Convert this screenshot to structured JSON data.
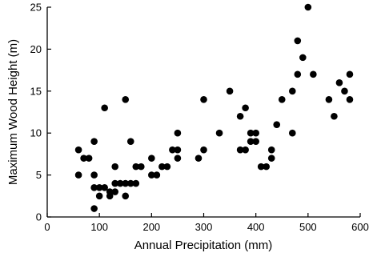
{
  "chart_data": {
    "type": "scatter",
    "title": "",
    "xlabel": "Annual Precipitation (mm)",
    "ylabel": "Maximum Wood Height (m)",
    "xlim": [
      0,
      600
    ],
    "ylim": [
      0,
      25
    ],
    "xticks": [
      0,
      100,
      200,
      300,
      400,
      500,
      600
    ],
    "yticks": [
      0,
      5,
      10,
      15,
      20,
      25
    ],
    "grid": false,
    "legend": "none",
    "marker_color": "#000000",
    "series": [
      {
        "points": [
          [
            60,
            8
          ],
          [
            60,
            5
          ],
          [
            70,
            7
          ],
          [
            80,
            7
          ],
          [
            90,
            9
          ],
          [
            90,
            5
          ],
          [
            90,
            3.5
          ],
          [
            90,
            1
          ],
          [
            100,
            2.5
          ],
          [
            100,
            3.5
          ],
          [
            110,
            13
          ],
          [
            110,
            3.5
          ],
          [
            120,
            3
          ],
          [
            120,
            2.5
          ],
          [
            130,
            6
          ],
          [
            130,
            4
          ],
          [
            130,
            3
          ],
          [
            140,
            4
          ],
          [
            150,
            14
          ],
          [
            150,
            4
          ],
          [
            150,
            2.5
          ],
          [
            160,
            9
          ],
          [
            160,
            4
          ],
          [
            170,
            6
          ],
          [
            170,
            4
          ],
          [
            180,
            6
          ],
          [
            200,
            7
          ],
          [
            200,
            5
          ],
          [
            210,
            5
          ],
          [
            220,
            6
          ],
          [
            230,
            6
          ],
          [
            240,
            8
          ],
          [
            250,
            10
          ],
          [
            250,
            8
          ],
          [
            250,
            7
          ],
          [
            290,
            7
          ],
          [
            300,
            14
          ],
          [
            300,
            8
          ],
          [
            330,
            10
          ],
          [
            350,
            15
          ],
          [
            370,
            12
          ],
          [
            370,
            8
          ],
          [
            380,
            13
          ],
          [
            380,
            8
          ],
          [
            390,
            10
          ],
          [
            390,
            9
          ],
          [
            400,
            10
          ],
          [
            400,
            9
          ],
          [
            410,
            6
          ],
          [
            420,
            6
          ],
          [
            430,
            8
          ],
          [
            430,
            7
          ],
          [
            440,
            11
          ],
          [
            450,
            14
          ],
          [
            470,
            15
          ],
          [
            470,
            10
          ],
          [
            480,
            21
          ],
          [
            480,
            17
          ],
          [
            490,
            19
          ],
          [
            500,
            25
          ],
          [
            510,
            17
          ],
          [
            540,
            14
          ],
          [
            550,
            12
          ],
          [
            560,
            16
          ],
          [
            570,
            15
          ],
          [
            580,
            17
          ],
          [
            580,
            14
          ]
        ]
      }
    ]
  }
}
